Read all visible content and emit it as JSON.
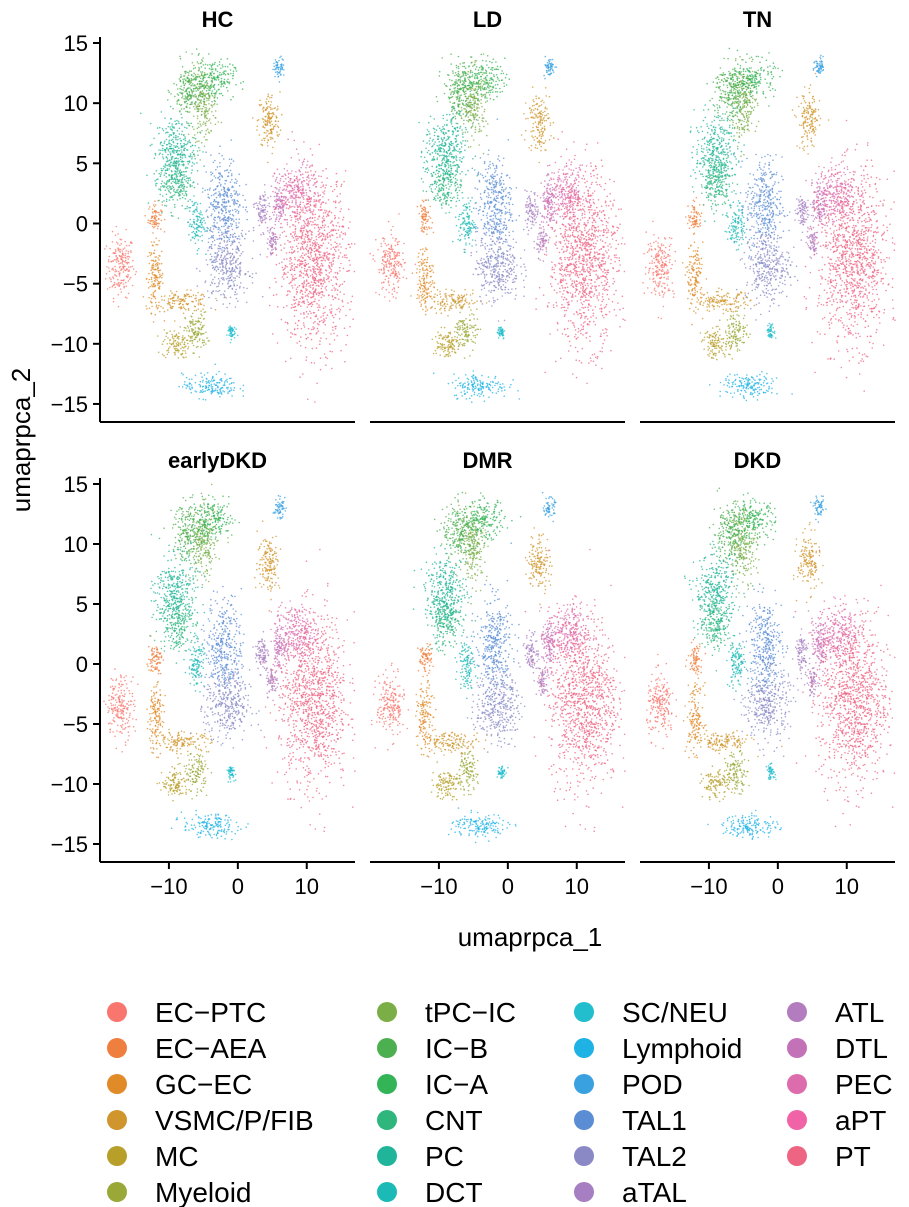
{
  "chart_data": {
    "type": "scatter",
    "xlabel": "umaprpca_1",
    "ylabel": "umaprpca_2",
    "xlim": [
      -20,
      17
    ],
    "ylim": [
      -16.5,
      15.5
    ],
    "x_ticks": [
      -10,
      0,
      10
    ],
    "y_ticks": [
      15,
      10,
      5,
      0,
      -5,
      -10,
      -15
    ],
    "x_tick_labels": [
      "−10",
      "0",
      "10"
    ],
    "y_tick_labels": [
      "15",
      "10",
      "5",
      "0",
      "−5",
      "−10",
      "−15"
    ],
    "grid": false,
    "legend_position": "bottom",
    "panels": [
      {
        "title": "HC"
      },
      {
        "title": "LD"
      },
      {
        "title": "TN"
      },
      {
        "title": "earlyDKD"
      },
      {
        "title": "DMR"
      },
      {
        "title": "DKD"
      }
    ],
    "series": [
      {
        "name": "EC−PTC",
        "color": "#F8766D"
      },
      {
        "name": "EC−AEA",
        "color": "#EF7F3E"
      },
      {
        "name": "GC−EC",
        "color": "#E08B28"
      },
      {
        "name": "VSMC/P/FIB",
        "color": "#D0952C"
      },
      {
        "name": "MC",
        "color": "#B79F2A"
      },
      {
        "name": "Myeloid",
        "color": "#9AA837"
      },
      {
        "name": "tPC−IC",
        "color": "#7CAE47"
      },
      {
        "name": "IC−B",
        "color": "#4CAF50"
      },
      {
        "name": "IC−A",
        "color": "#33B457"
      },
      {
        "name": "CNT",
        "color": "#2EB67D"
      },
      {
        "name": "PC",
        "color": "#20B59A"
      },
      {
        "name": "DCT",
        "color": "#1BBAB6"
      },
      {
        "name": "SC/NEU",
        "color": "#22BECE"
      },
      {
        "name": "Lymphoid",
        "color": "#1FB3E5"
      },
      {
        "name": "POD",
        "color": "#3AA1E0"
      },
      {
        "name": "TAL1",
        "color": "#5B8DD4"
      },
      {
        "name": "TAL2",
        "color": "#8A89C6"
      },
      {
        "name": "aTAL",
        "color": "#A57FC2"
      },
      {
        "name": "ATL",
        "color": "#B37CBE"
      },
      {
        "name": "DTL",
        "color": "#C472B8"
      },
      {
        "name": "PEC",
        "color": "#DD6CAD"
      },
      {
        "name": "aPT",
        "color": "#F063A6"
      },
      {
        "name": "PT",
        "color": "#EE6483"
      }
    ],
    "clusters": [
      {
        "series": "EC−PTC",
        "x": -17,
        "y": -3.5,
        "sx": 1.0,
        "sy": 1.3
      },
      {
        "series": "EC−AEA",
        "x": -12,
        "y": 0.5,
        "sx": 0.5,
        "sy": 0.6
      },
      {
        "series": "GC−EC",
        "x": -12,
        "y": -4.5,
        "sx": 0.6,
        "sy": 1.4
      },
      {
        "series": "VSMC/P/FIB",
        "x": -8,
        "y": -6.5,
        "sx": 2.0,
        "sy": 0.4
      },
      {
        "series": "VSMC/P/FIB",
        "x": 4.5,
        "y": 8.5,
        "sx": 0.8,
        "sy": 1.2
      },
      {
        "series": "MC",
        "x": -9,
        "y": -10,
        "sx": 1.0,
        "sy": 0.6
      },
      {
        "series": "Myeloid",
        "x": -6,
        "y": -9,
        "sx": 0.8,
        "sy": 0.8
      },
      {
        "series": "tPC−IC",
        "x": -5,
        "y": 10,
        "sx": 1.0,
        "sy": 1.5
      },
      {
        "series": "IC−B",
        "x": -7,
        "y": 11,
        "sx": 1.2,
        "sy": 1.2
      },
      {
        "series": "IC−A",
        "x": -3.5,
        "y": 12,
        "sx": 1.5,
        "sy": 0.8
      },
      {
        "series": "CNT",
        "x": -9,
        "y": 3.5,
        "sx": 1.2,
        "sy": 1.2
      },
      {
        "series": "PC",
        "x": -9,
        "y": 6,
        "sx": 1.5,
        "sy": 1.5
      },
      {
        "series": "DCT",
        "x": -6,
        "y": 0,
        "sx": 0.6,
        "sy": 1.0
      },
      {
        "series": "SC/NEU",
        "x": -1,
        "y": -9,
        "sx": 0.3,
        "sy": 0.3
      },
      {
        "series": "Lymphoid",
        "x": -4,
        "y": -13.5,
        "sx": 2.0,
        "sy": 0.5
      },
      {
        "series": "POD",
        "x": 6,
        "y": 13,
        "sx": 0.4,
        "sy": 0.4
      },
      {
        "series": "TAL1",
        "x": -2,
        "y": 1.5,
        "sx": 1.3,
        "sy": 2.0
      },
      {
        "series": "TAL2",
        "x": -1.5,
        "y": -3.5,
        "sx": 1.6,
        "sy": 1.5
      },
      {
        "series": "aTAL",
        "x": 3.5,
        "y": 1.0,
        "sx": 0.5,
        "sy": 0.8
      },
      {
        "series": "ATL",
        "x": 5,
        "y": -1.5,
        "sx": 0.4,
        "sy": 0.6
      },
      {
        "series": "DTL",
        "x": 6,
        "y": 1.5,
        "sx": 0.5,
        "sy": 1.0
      },
      {
        "series": "PEC",
        "x": 8.5,
        "y": 2.5,
        "sx": 1.5,
        "sy": 1.2
      },
      {
        "series": "PT",
        "x": 11,
        "y": -3,
        "sx": 2.5,
        "sy": 3.5
      }
    ]
  }
}
